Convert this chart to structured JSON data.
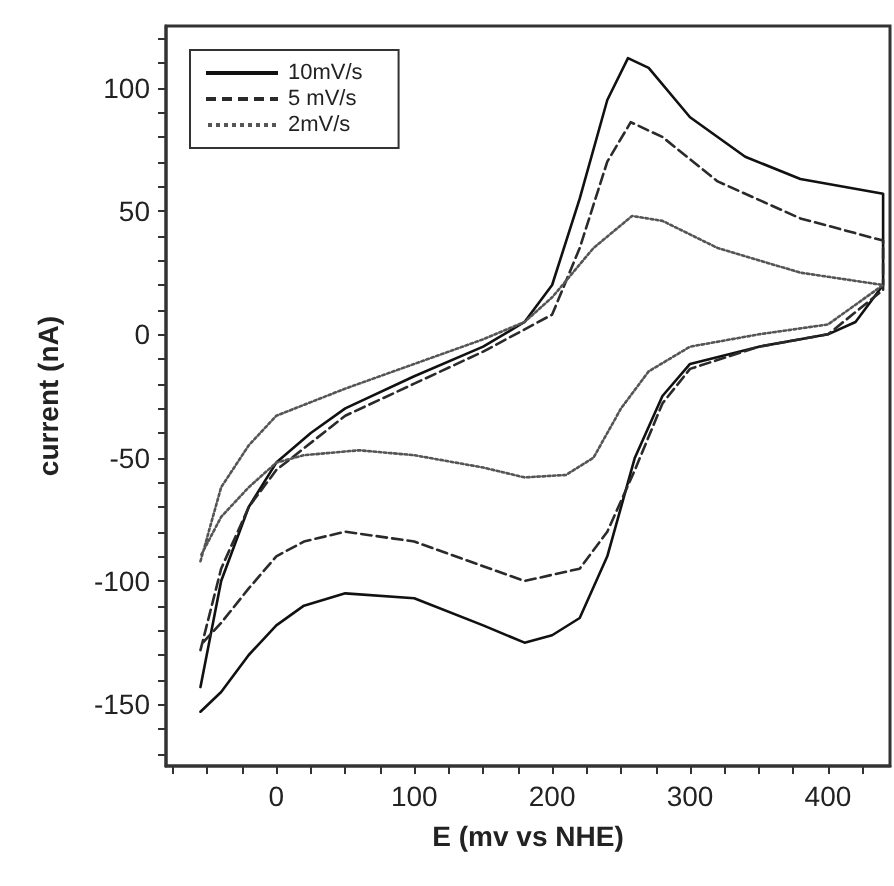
{
  "chart_data": {
    "type": "line",
    "xlabel": "E (mv vs NHE)",
    "ylabel": "current (nA)",
    "xlim": [
      -80,
      445
    ],
    "ylim": [
      -175,
      125
    ],
    "xticks": [
      {
        "value": -75,
        "label": null
      },
      {
        "value": -50,
        "label": null
      },
      {
        "value": -25,
        "label": null
      },
      0,
      {
        "value": 25,
        "label": null
      },
      {
        "value": 50,
        "label": null
      },
      {
        "value": 75,
        "label": null
      },
      100,
      {
        "value": 125,
        "label": null
      },
      {
        "value": 150,
        "label": null
      },
      {
        "value": 175,
        "label": null
      },
      200,
      {
        "value": 225,
        "label": null
      },
      {
        "value": 250,
        "label": null
      },
      {
        "value": 275,
        "label": null
      },
      300,
      {
        "value": 325,
        "label": null
      },
      {
        "value": 350,
        "label": null
      },
      {
        "value": 375,
        "label": null
      },
      400,
      {
        "value": 425,
        "label": null
      }
    ],
    "yticks": [
      {
        "value": -170,
        "label": null
      },
      {
        "value": -160,
        "label": null
      },
      -150,
      {
        "value": -140,
        "label": null
      },
      {
        "value": -130,
        "label": null
      },
      {
        "value": -120,
        "label": null
      },
      {
        "value": -110,
        "label": null
      },
      -100,
      {
        "value": -90,
        "label": null
      },
      {
        "value": -80,
        "label": null
      },
      {
        "value": -70,
        "label": null
      },
      {
        "value": -60,
        "label": null
      },
      -50,
      {
        "value": -40,
        "label": null
      },
      {
        "value": -30,
        "label": null
      },
      {
        "value": -20,
        "label": null
      },
      {
        "value": -10,
        "label": null
      },
      0,
      {
        "value": 10,
        "label": null
      },
      {
        "value": 20,
        "label": null
      },
      {
        "value": 30,
        "label": null
      },
      {
        "value": 40,
        "label": null
      },
      50,
      {
        "value": 60,
        "label": null
      },
      {
        "value": 70,
        "label": null
      },
      {
        "value": 80,
        "label": null
      },
      {
        "value": 90,
        "label": null
      },
      100,
      {
        "value": 110,
        "label": null
      },
      {
        "value": 120,
        "label": null
      }
    ],
    "grid": false,
    "legend": "top left",
    "marker": "none",
    "series": [
      {
        "name": "10mV/s",
        "color": "#111111",
        "line_style": "solid",
        "x": [
          -55,
          -40,
          -20,
          0,
          25,
          50,
          100,
          150,
          180,
          200,
          220,
          240,
          255,
          270,
          300,
          340,
          380,
          440,
          440,
          420,
          400,
          350,
          300,
          280,
          260,
          240,
          220,
          200,
          180,
          150,
          100,
          50,
          20,
          0,
          -20,
          -40,
          -55
        ],
        "values": [
          -143,
          -100,
          -70,
          -52,
          -40,
          -30,
          -17,
          -5,
          5,
          20,
          55,
          95,
          112,
          108,
          88,
          72,
          63,
          57,
          20,
          5,
          0,
          -5,
          -12,
          -25,
          -50,
          -90,
          -115,
          -122,
          -125,
          -118,
          -107,
          -105,
          -110,
          -118,
          -130,
          -145,
          -153
        ]
      },
      {
        "name": "5 mV/s",
        "color": "#2a2a2a",
        "line_style": "dashed",
        "x": [
          -55,
          -40,
          -20,
          0,
          50,
          100,
          150,
          200,
          220,
          240,
          257,
          280,
          320,
          380,
          440,
          440,
          400,
          350,
          300,
          280,
          260,
          240,
          220,
          180,
          150,
          100,
          50,
          20,
          0,
          -20,
          -40,
          -55
        ],
        "values": [
          -128,
          -95,
          -70,
          -55,
          -33,
          -20,
          -7,
          8,
          35,
          70,
          86,
          80,
          62,
          47,
          38,
          18,
          0,
          -5,
          -14,
          -28,
          -55,
          -80,
          -95,
          -100,
          -94,
          -84,
          -80,
          -84,
          -90,
          -103,
          -117,
          -126
        ]
      },
      {
        "name": "2mV/s",
        "color": "#555555",
        "line_style": "dotted",
        "x": [
          -55,
          -40,
          -20,
          0,
          50,
          100,
          150,
          180,
          200,
          230,
          258,
          280,
          320,
          380,
          440,
          440,
          400,
          350,
          300,
          270,
          250,
          230,
          210,
          180,
          150,
          100,
          60,
          20,
          0,
          -20,
          -40,
          -55
        ],
        "values": [
          -92,
          -62,
          -45,
          -33,
          -22,
          -12,
          -2,
          5,
          15,
          35,
          48,
          46,
          35,
          25,
          20,
          20,
          4,
          0,
          -5,
          -15,
          -30,
          -50,
          -57,
          -58,
          -54,
          -49,
          -47,
          -49,
          -52,
          -62,
          -74,
          -90
        ]
      }
    ]
  }
}
